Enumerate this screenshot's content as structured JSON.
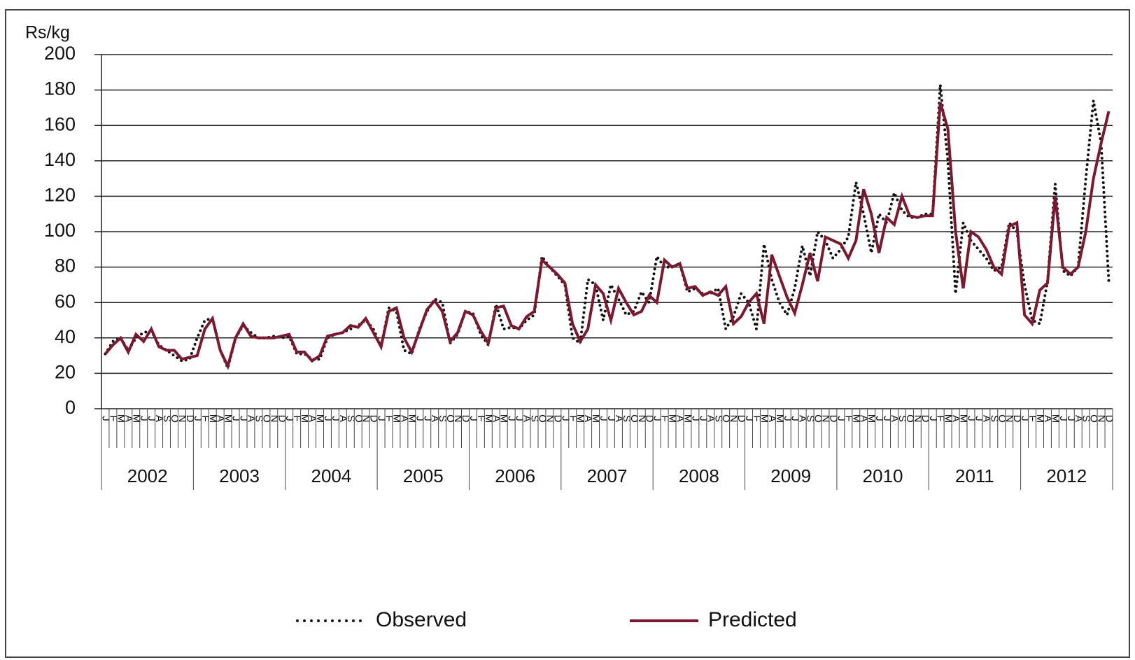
{
  "chart_data": {
    "type": "line",
    "y_label": "Rs/kg",
    "categories": [
      "J",
      "F",
      "M",
      "A",
      "M",
      "J",
      "J",
      "A",
      "S",
      "O",
      "N",
      "D",
      "J",
      "F",
      "M",
      "A",
      "M",
      "J",
      "J",
      "A",
      "S",
      "O",
      "N",
      "D",
      "J",
      "F",
      "M",
      "A",
      "M",
      "J",
      "J",
      "A",
      "S",
      "O",
      "N",
      "D",
      "J",
      "F",
      "M",
      "A",
      "M",
      "J",
      "J",
      "A",
      "S",
      "O",
      "N",
      "D",
      "J",
      "F",
      "M",
      "A",
      "M",
      "J",
      "J",
      "A",
      "S",
      "O",
      "N",
      "D",
      "J",
      "F",
      "M",
      "A",
      "M",
      "J",
      "J",
      "A",
      "S",
      "O",
      "N",
      "D",
      "J",
      "F",
      "M",
      "A",
      "M",
      "J",
      "J",
      "A",
      "S",
      "O",
      "N",
      "D",
      "J",
      "F",
      "M",
      "A",
      "M",
      "J",
      "J",
      "A",
      "S",
      "O",
      "N",
      "D",
      "J",
      "F",
      "M",
      "A",
      "M",
      "J",
      "J",
      "A",
      "S",
      "O",
      "N",
      "D",
      "J",
      "F",
      "M",
      "A",
      "M",
      "J",
      "J",
      "A",
      "S",
      "O",
      "N",
      "D",
      "J",
      "F",
      "M",
      "A",
      "M",
      "J",
      "J",
      "A",
      "S",
      "O",
      "N",
      "D"
    ],
    "years": [
      "2002",
      "2003",
      "2004",
      "2005",
      "2006",
      "2007",
      "2008",
      "2009",
      "2010",
      "2011",
      "2012"
    ],
    "series": [
      {
        "name": "Observed",
        "color": "#111111",
        "style": "dotted",
        "values": [
          31,
          38,
          40,
          33,
          40,
          43,
          44,
          36,
          33,
          30,
          27,
          28,
          40,
          50,
          51,
          33,
          23,
          40,
          47,
          43,
          40,
          40,
          41,
          40,
          41,
          31,
          31,
          28,
          28,
          40,
          42,
          43,
          45,
          47,
          50,
          45,
          35,
          57,
          55,
          33,
          31,
          45,
          55,
          62,
          60,
          37,
          42,
          55,
          54,
          42,
          36,
          59,
          45,
          46,
          45,
          50,
          53,
          86,
          80,
          75,
          70,
          40,
          37,
          73,
          70,
          50,
          70,
          62,
          53,
          55,
          66,
          60,
          86,
          80,
          80,
          82,
          66,
          68,
          65,
          65,
          68,
          45,
          52,
          65,
          60,
          45,
          93,
          73,
          60,
          53,
          68,
          92,
          75,
          100,
          95,
          85,
          90,
          97,
          128,
          110,
          88,
          110,
          105,
          122,
          112,
          108,
          108,
          110,
          110,
          183,
          140,
          65,
          105,
          95,
          90,
          85,
          78,
          80,
          105,
          100,
          70,
          50,
          48,
          72,
          127,
          78,
          75,
          80,
          130,
          174,
          150,
          72
        ]
      },
      {
        "name": "Predicted",
        "color": "#7a1a30",
        "style": "solid",
        "values": [
          31,
          36,
          40,
          32,
          42,
          38,
          45,
          35,
          33,
          33,
          28,
          29,
          30,
          45,
          51,
          33,
          24,
          40,
          48,
          41,
          40,
          40,
          40,
          41,
          42,
          32,
          32,
          27,
          30,
          41,
          42,
          43,
          47,
          46,
          51,
          43,
          35,
          55,
          57,
          40,
          32,
          44,
          56,
          61,
          55,
          38,
          43,
          55,
          53,
          44,
          37,
          57,
          58,
          47,
          45,
          52,
          55,
          84,
          80,
          76,
          71,
          48,
          38,
          45,
          70,
          65,
          50,
          68,
          60,
          53,
          55,
          64,
          60,
          84,
          80,
          82,
          68,
          69,
          64,
          66,
          64,
          69,
          48,
          52,
          60,
          65,
          48,
          87,
          75,
          63,
          54,
          70,
          88,
          72,
          97,
          95,
          93,
          85,
          95,
          124,
          110,
          88,
          108,
          104,
          120,
          109,
          108,
          109,
          109,
          173,
          158,
          100,
          68,
          100,
          97,
          90,
          80,
          76,
          103,
          105,
          53,
          48,
          67,
          71,
          120,
          80,
          76,
          80,
          100,
          130,
          150,
          168
        ]
      }
    ],
    "ylim": [
      0,
      200
    ],
    "yticks": [
      0,
      20,
      40,
      60,
      80,
      100,
      120,
      140,
      160,
      180,
      200
    ],
    "grid": true
  }
}
